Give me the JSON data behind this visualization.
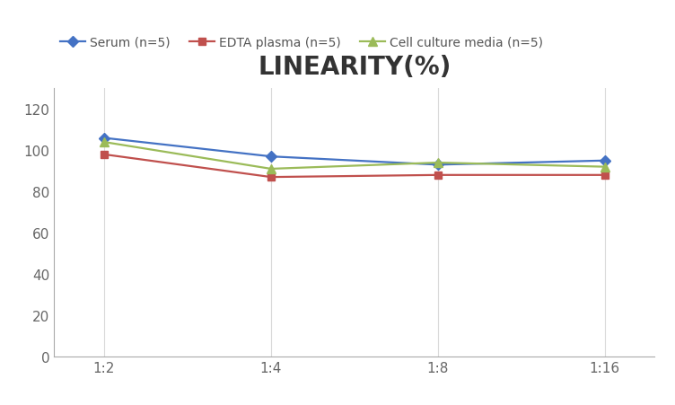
{
  "title": "LINEARITY(%)",
  "title_fontsize": 20,
  "title_fontweight": "bold",
  "x_labels": [
    "1:2",
    "1:4",
    "1:8",
    "1:16"
  ],
  "x_values": [
    0,
    1,
    2,
    3
  ],
  "series": [
    {
      "label": "Serum (n=5)",
      "values": [
        106,
        97,
        93,
        95
      ],
      "color": "#4472C4",
      "marker": "D",
      "markersize": 6,
      "linewidth": 1.6
    },
    {
      "label": "EDTA plasma (n=5)",
      "values": [
        98,
        87,
        88,
        88
      ],
      "color": "#C0504D",
      "marker": "s",
      "markersize": 6,
      "linewidth": 1.6
    },
    {
      "label": "Cell culture media (n=5)",
      "values": [
        104,
        91,
        94,
        92
      ],
      "color": "#9BBB59",
      "marker": "^",
      "markersize": 7,
      "linewidth": 1.6
    }
  ],
  "ylim": [
    0,
    130
  ],
  "yticks": [
    0,
    20,
    40,
    60,
    80,
    100,
    120
  ],
  "grid_color": "#D9D9D9",
  "background_color": "#FFFFFF",
  "legend_fontsize": 10,
  "tick_fontsize": 11,
  "spine_color": "#AAAAAA"
}
